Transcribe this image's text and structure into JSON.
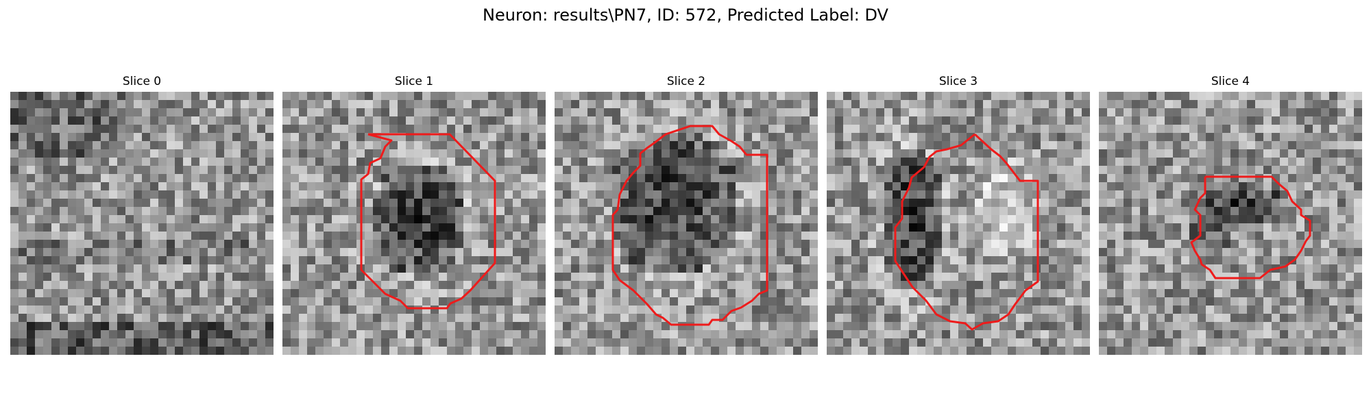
{
  "figure": {
    "title": "Neuron: results\\PN7, ID: 572, Predicted Label: DV"
  },
  "colors": {
    "contour": "#ee1b1b",
    "background": "#ffffff",
    "colormap": "gray"
  },
  "slices": [
    {
      "title": "Slice 0",
      "has_contour": false
    },
    {
      "title": "Slice 1",
      "has_contour": true
    },
    {
      "title": "Slice 2",
      "has_contour": true
    },
    {
      "title": "Slice 3",
      "has_contour": true
    },
    {
      "title": "Slice 4",
      "has_contour": true
    }
  ]
}
